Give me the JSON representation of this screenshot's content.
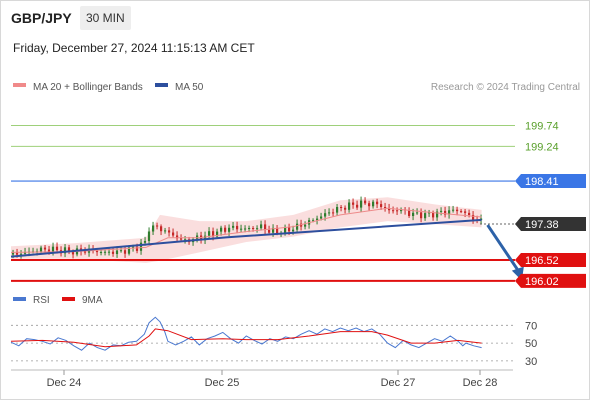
{
  "header": {
    "pair": "GBP/JPY",
    "timeframe": "30 MIN",
    "datetime": "Friday, December 27, 2024 11:15:13 AM CET"
  },
  "legend": {
    "ma_label": "MA 20 + Bollinger Bands",
    "ma50_label": "MA 50",
    "credit": "Research © 2024 Trading Central"
  },
  "colors": {
    "resistance": "#9ed07a",
    "pivot": "#3a76e6",
    "support": "#e01010",
    "current": "#333333",
    "rsi": "#4a78d0",
    "ma9": "#e01010",
    "bb": "#f9d6d6",
    "ma20": "#ee8a8a",
    "ma50": "#2d4f9e",
    "candle_up": "#2f7d2f",
    "candle_down": "#c62828",
    "arrow": "#2d62a8"
  },
  "chart_data": [
    {
      "type": "candlestick",
      "levels": {
        "resistance": [
          199.74,
          199.24
        ],
        "pivot": 198.41,
        "current": 197.38,
        "support": [
          196.52,
          196.02
        ]
      },
      "level_labels": {
        "resistance": [
          "199.74",
          "199.24"
        ],
        "pivot": "198.41",
        "current": "197.38",
        "support": [
          "196.52",
          "196.02"
        ]
      },
      "price_range": [
        195.8,
        200.4
      ],
      "x_ticks": [
        "Dec 24",
        "Dec 25",
        "Dec 27",
        "Dec 28"
      ],
      "price_path": [
        [
          0,
          196.65
        ],
        [
          10,
          196.7
        ],
        [
          20,
          196.78
        ],
        [
          30,
          196.76
        ],
        [
          40,
          196.72
        ],
        [
          50,
          196.75
        ],
        [
          60,
          196.7
        ],
        [
          70,
          196.72
        ],
        [
          80,
          196.82
        ],
        [
          86,
          196.95
        ],
        [
          88,
          197.28
        ],
        [
          92,
          197.32
        ],
        [
          100,
          197.18
        ],
        [
          110,
          196.97
        ],
        [
          120,
          197.05
        ],
        [
          130,
          197.18
        ],
        [
          140,
          197.3
        ],
        [
          150,
          197.26
        ],
        [
          160,
          197.32
        ],
        [
          165,
          197.2
        ],
        [
          175,
          197.22
        ],
        [
          185,
          197.35
        ],
        [
          195,
          197.52
        ],
        [
          205,
          197.7
        ],
        [
          215,
          197.82
        ],
        [
          225,
          197.88
        ],
        [
          235,
          197.85
        ],
        [
          240,
          197.7
        ],
        [
          248,
          197.72
        ],
        [
          255,
          197.62
        ],
        [
          265,
          197.6
        ],
        [
          275,
          197.66
        ],
        [
          285,
          197.72
        ],
        [
          290,
          197.63
        ],
        [
          295,
          197.5
        ],
        [
          300,
          197.45
        ]
      ],
      "ma20_path": [
        [
          0,
          196.7
        ],
        [
          40,
          196.72
        ],
        [
          86,
          196.82
        ],
        [
          100,
          197.05
        ],
        [
          120,
          197.05
        ],
        [
          150,
          197.2
        ],
        [
          180,
          197.32
        ],
        [
          210,
          197.6
        ],
        [
          240,
          197.76
        ],
        [
          270,
          197.65
        ],
        [
          300,
          197.55
        ]
      ],
      "bb_upper": [
        [
          0,
          196.85
        ],
        [
          40,
          196.92
        ],
        [
          86,
          197.05
        ],
        [
          95,
          197.6
        ],
        [
          120,
          197.45
        ],
        [
          150,
          197.45
        ],
        [
          180,
          197.6
        ],
        [
          210,
          197.95
        ],
        [
          240,
          198.02
        ],
        [
          270,
          197.85
        ],
        [
          300,
          197.72
        ]
      ],
      "bb_lower": [
        [
          0,
          196.55
        ],
        [
          40,
          196.55
        ],
        [
          86,
          196.45
        ],
        [
          95,
          196.5
        ],
        [
          120,
          196.7
        ],
        [
          150,
          196.95
        ],
        [
          180,
          197.08
        ],
        [
          210,
          197.3
        ],
        [
          240,
          197.45
        ],
        [
          270,
          197.38
        ],
        [
          300,
          197.3
        ]
      ],
      "ma50_path": [
        [
          0,
          196.6
        ],
        [
          137,
          197.06
        ],
        [
          300,
          197.48
        ]
      ],
      "forecast_arrow": [
        [
          300,
          197.38
        ],
        [
          325,
          196.05
        ]
      ]
    },
    {
      "type": "line",
      "title": "RSI",
      "series": [
        {
          "name": "RSI",
          "points": [
            [
              0,
              51
            ],
            [
              5,
              47
            ],
            [
              10,
              55
            ],
            [
              15,
              54
            ],
            [
              20,
              52
            ],
            [
              25,
              49
            ],
            [
              30,
              56
            ],
            [
              35,
              53
            ],
            [
              40,
              47
            ],
            [
              45,
              42
            ],
            [
              50,
              50
            ],
            [
              55,
              45
            ],
            [
              60,
              42
            ],
            [
              65,
              48
            ],
            [
              70,
              47
            ],
            [
              75,
              51
            ],
            [
              80,
              52
            ],
            [
              85,
              60
            ],
            [
              88,
              73
            ],
            [
              92,
              79
            ],
            [
              95,
              74
            ],
            [
              98,
              63
            ],
            [
              100,
              52
            ],
            [
              105,
              48
            ],
            [
              110,
              52
            ],
            [
              115,
              57
            ],
            [
              120,
              48
            ],
            [
              125,
              55
            ],
            [
              130,
              58
            ],
            [
              135,
              62
            ],
            [
              140,
              55
            ],
            [
              145,
              50
            ],
            [
              150,
              58
            ],
            [
              155,
              53
            ],
            [
              160,
              49
            ],
            [
              165,
              55
            ],
            [
              170,
              52
            ],
            [
              175,
              57
            ],
            [
              180,
              55
            ],
            [
              185,
              60
            ],
            [
              190,
              64
            ],
            [
              195,
              60
            ],
            [
              200,
              66
            ],
            [
              205,
              63
            ],
            [
              210,
              67
            ],
            [
              215,
              64
            ],
            [
              220,
              67
            ],
            [
              225,
              63
            ],
            [
              230,
              66
            ],
            [
              235,
              60
            ],
            [
              240,
              50
            ],
            [
              245,
              45
            ],
            [
              250,
              53
            ],
            [
              255,
              48
            ],
            [
              260,
              45
            ],
            [
              265,
              50
            ],
            [
              270,
              55
            ],
            [
              275,
              52
            ],
            [
              280,
              58
            ],
            [
              285,
              52
            ],
            [
              288,
              47
            ],
            [
              290,
              50
            ],
            [
              295,
              47
            ],
            [
              300,
              45
            ]
          ]
        },
        {
          "name": "9MA",
          "points": [
            [
              0,
              52
            ],
            [
              20,
              53
            ],
            [
              40,
              51
            ],
            [
              60,
              46
            ],
            [
              80,
              48
            ],
            [
              88,
              58
            ],
            [
              92,
              66
            ],
            [
              100,
              64
            ],
            [
              115,
              54
            ],
            [
              135,
              55
            ],
            [
              150,
              54
            ],
            [
              170,
              54
            ],
            [
              190,
              58
            ],
            [
              210,
              63
            ],
            [
              230,
              63
            ],
            [
              240,
              59
            ],
            [
              255,
              50
            ],
            [
              270,
              50
            ],
            [
              285,
              53
            ],
            [
              300,
              50
            ]
          ]
        }
      ],
      "y_ticks": [
        70,
        50,
        30
      ],
      "y_tick_labels": [
        "70",
        "50",
        "30"
      ],
      "ylim": [
        22,
        85
      ],
      "x_ticks": [
        "Dec 24",
        "Dec 25",
        "Dec 27",
        "Dec 28"
      ]
    }
  ]
}
